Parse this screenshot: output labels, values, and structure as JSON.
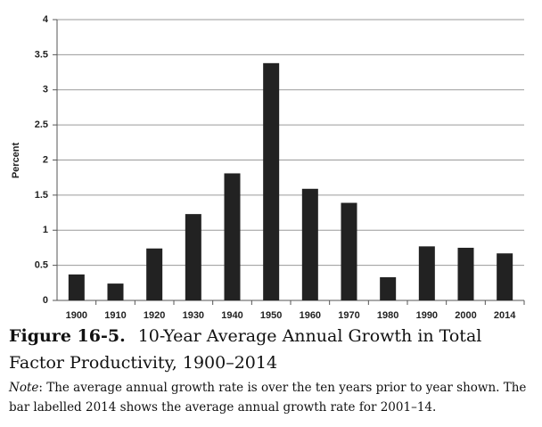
{
  "chart_data": {
    "type": "bar",
    "y_label": "Percent",
    "categories": [
      "1900",
      "1910",
      "1920",
      "1930",
      "1940",
      "1950",
      "1960",
      "1970",
      "1980",
      "1990",
      "2000",
      "2014"
    ],
    "values": [
      0.37,
      0.24,
      0.74,
      1.23,
      1.81,
      3.38,
      1.59,
      1.39,
      0.33,
      0.77,
      0.75,
      0.67
    ],
    "color": "#222222",
    "ylim": [
      0,
      4
    ],
    "yticks": [
      0,
      0.5,
      1,
      1.5,
      2,
      2.5,
      3,
      3.5,
      4
    ],
    "grid": true
  },
  "caption": {
    "figure": "Figure 16-5.",
    "title": "10-Year Average Annual Growth in Total Factor Productivity, 1900–2014",
    "note_label": "Note",
    "note": ": The average annual growth rate is over the ten years prior to year shown. The bar labelled 2014 shows the average annual growth rate for 2001–14."
  }
}
